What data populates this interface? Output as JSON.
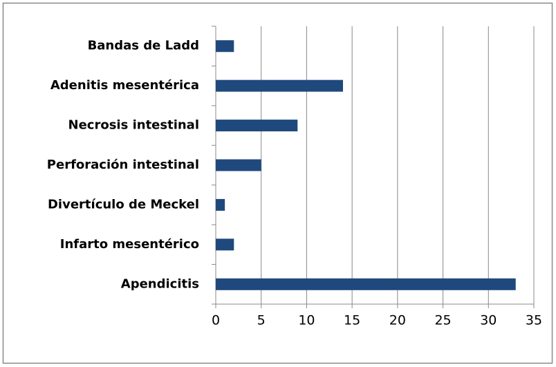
{
  "chart_data": {
    "type": "hbar",
    "categories": [
      "Bandas de Ladd",
      "Adenitis mesentérica",
      "Necrosis intestinal",
      "Perforación intestinal",
      "Divertículo de Meckel",
      "Infarto mesentérico",
      "Apendicitis"
    ],
    "values": [
      2,
      14,
      9,
      5,
      1,
      2,
      33
    ],
    "color": "#1f497d",
    "xlim": [
      0,
      35
    ],
    "xticks": [
      0,
      5,
      10,
      15,
      20,
      25,
      30,
      35
    ],
    "grid": true
  }
}
